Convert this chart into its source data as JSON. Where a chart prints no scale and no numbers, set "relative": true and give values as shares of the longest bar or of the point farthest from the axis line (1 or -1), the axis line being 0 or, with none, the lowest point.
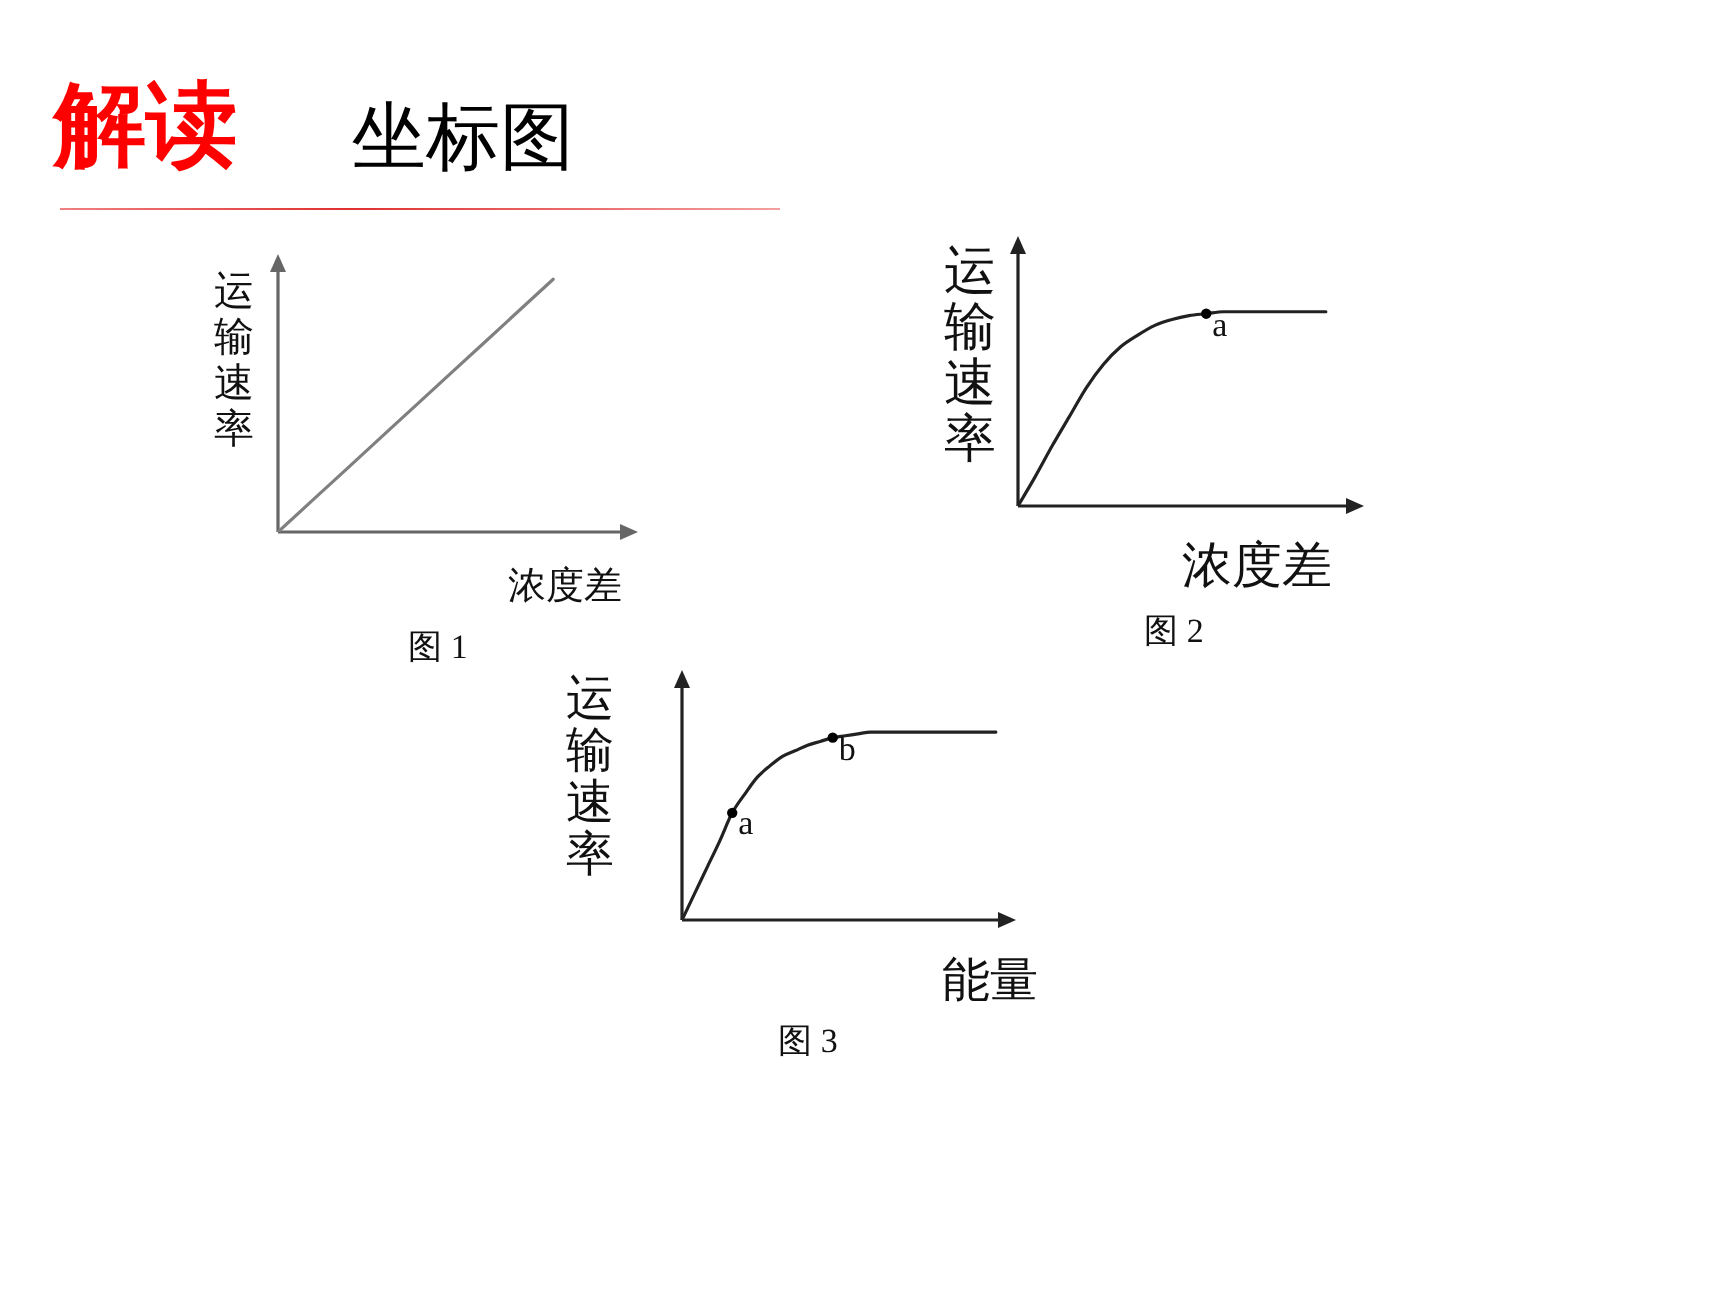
{
  "chart_data": [
    {
      "type": "line",
      "title": "解读",
      "subtitle": "坐标图",
      "xlabel": "浓度差",
      "ylabel": "运输速率",
      "categories": [
        null,
        null,
        null,
        null,
        null,
        null
      ],
      "relative": true,
      "series": [
        {
          "color": "#808080",
          "values": [
            0,
            0.25,
            0.5,
            0.75,
            1,
            null
          ]
        }
      ],
      "annotations": [
        "图 1"
      ]
    },
    {
      "type": "line",
      "xlabel": "浓度差",
      "ylabel": "运输速率",
      "categories": [
        null,
        null,
        null,
        null,
        null,
        null,
        null,
        null,
        null,
        null,
        null,
        null,
        null,
        null,
        null,
        null,
        null,
        null,
        null
      ],
      "relative": true,
      "series": [
        {
          "color": "#222222",
          "values": [
            0,
            0.15,
            0.31,
            0.46,
            0.61,
            0.73,
            0.82,
            0.88,
            0.93,
            0.96,
            0.98,
            0.99,
            1,
            1,
            1,
            1,
            1,
            1,
            1
          ]
        }
      ],
      "annotations": [
        "图 2",
        {
          "text": "a",
          "y": 0.99
        }
      ]
    },
    {
      "type": "line",
      "xlabel": "能量",
      "ylabel": "运输速率",
      "categories": [
        null,
        null,
        null,
        null,
        null,
        null,
        null,
        null,
        null,
        null,
        null,
        null,
        null,
        null,
        null,
        null,
        null,
        null,
        null,
        null,
        null,
        null,
        null,
        null,
        null,
        null
      ],
      "relative": true,
      "series": [
        {
          "color": "#222222",
          "values": [
            0,
            0.14,
            0.28,
            0.42,
            0.57,
            0.67,
            0.76,
            0.82,
            0.87,
            0.9,
            0.93,
            0.95,
            0.97,
            0.98,
            0.99,
            1,
            1,
            1,
            1,
            1,
            1,
            1,
            1,
            1,
            1,
            1
          ]
        }
      ],
      "annotations": [
        "图 3",
        {
          "text": "a",
          "y": 0.57
        },
        {
          "text": "b",
          "y": 0.97
        }
      ]
    }
  ]
}
